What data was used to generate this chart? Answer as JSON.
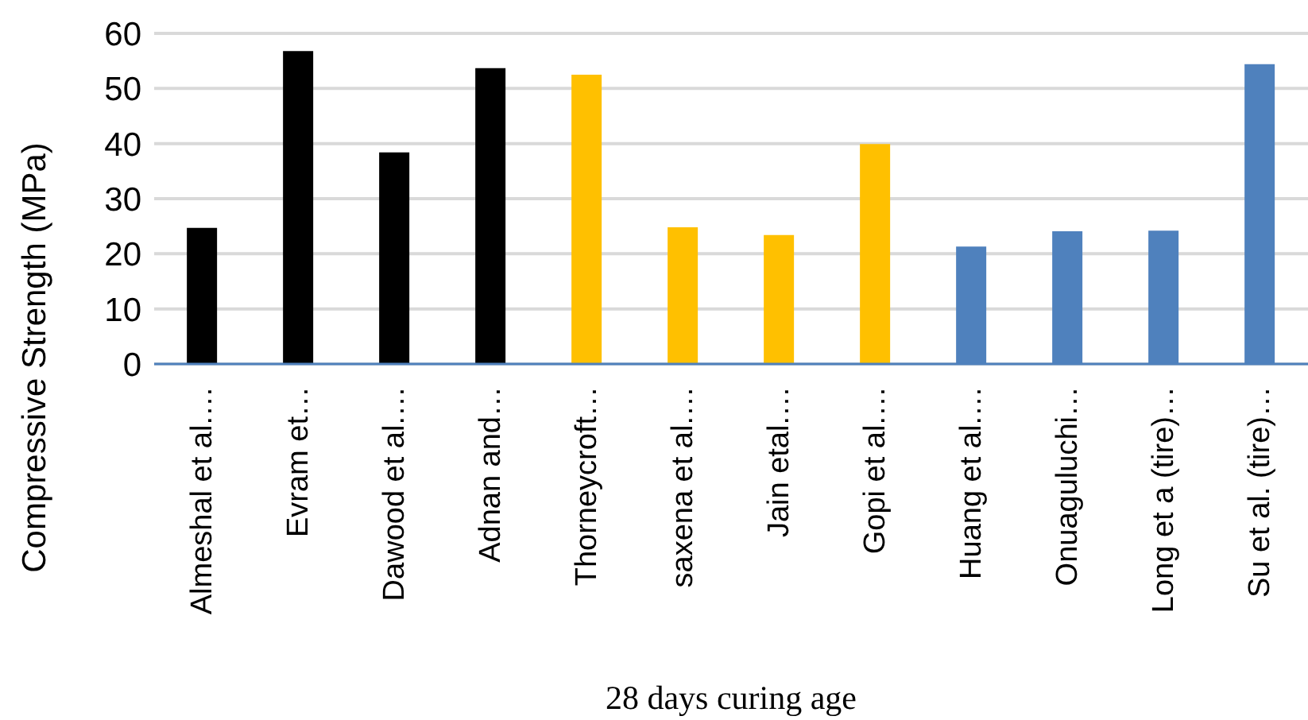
{
  "chart_data": {
    "type": "bar",
    "xlabel": "28 days curing age",
    "ylabel": "Compressive Strength (MPa)",
    "categories": [
      "Almeshal et al.…",
      "Evram et…",
      "Dawood et al.…",
      "Adnan and…",
      "Thorneycroft…",
      "saxena et al.…",
      "Jain etal.…",
      "Gopi et al.…",
      "Huang et al.…",
      "Onuaguluchi…",
      "Long et a (tire)…",
      "Su et al. (tire)…"
    ],
    "values": [
      24.7,
      56.8,
      38.4,
      53.7,
      52.5,
      24.8,
      23.4,
      39.9,
      21.3,
      24.1,
      24.2,
      54.4
    ],
    "colors": [
      "#000000",
      "#000000",
      "#000000",
      "#000000",
      "#ffc000",
      "#ffc000",
      "#ffc000",
      "#ffc000",
      "#4f81bd",
      "#4f81bd",
      "#4f81bd",
      "#4f81bd"
    ],
    "ylim": [
      0,
      60
    ],
    "yticks": [
      0,
      10,
      20,
      30,
      40,
      50,
      60
    ],
    "grid": "y",
    "legend": false
  }
}
